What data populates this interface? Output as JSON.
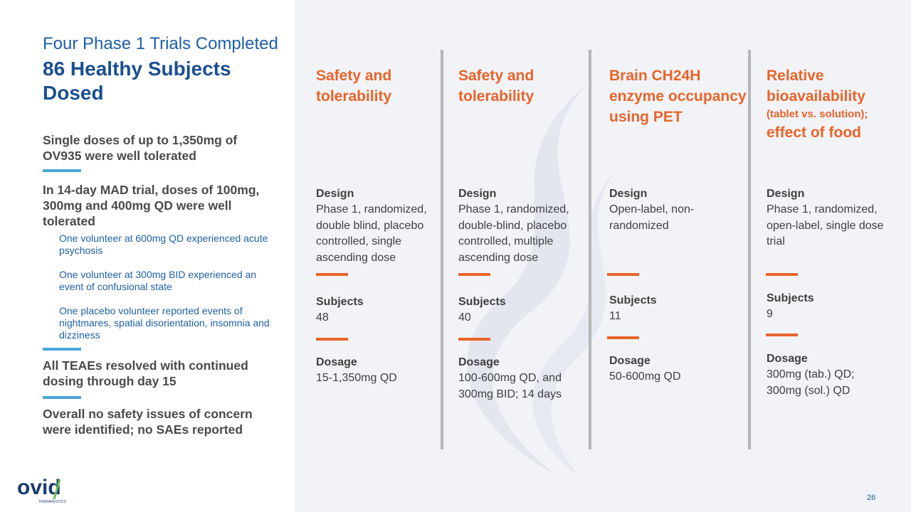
{
  "header": {
    "subtitle": "Four Phase 1 Trials Completed",
    "title": "86 Healthy Subjects Dosed"
  },
  "left_points": [
    {
      "text": "Single doses of up to 1,350mg of OV935 were well tolerated"
    },
    {
      "text": "In 14-day MAD trial, doses of 100mg, 300mg and 400mg QD were well tolerated"
    },
    {
      "text": "All TEAEs resolved with continued dosing through day 15"
    },
    {
      "text": "Overall no safety issues of concern were identified; no SAEs reported"
    }
  ],
  "sub_points": [
    "One volunteer at 600mg QD experienced acute psychosis",
    "One volunteer at 300mg BID experienced an event of confusional state",
    "One placebo volunteer reported events of nightmares, spatial disorientation, insomnia and dizziness"
  ],
  "columns": [
    {
      "heading": "Safety and tolerability",
      "heading_extra": "",
      "heading_tail": "",
      "design_label": "Design",
      "design": "Phase 1, randomized, double blind, placebo controlled, single ascending dose",
      "subjects_label": "Subjects",
      "subjects": "48",
      "dosage_label": "Dosage",
      "dosage": "15-1,350mg QD"
    },
    {
      "heading": "Safety and tolerability",
      "heading_extra": "",
      "heading_tail": "",
      "design_label": "Design",
      "design": "Phase 1, randomized, double-blind, placebo controlled, multiple ascending dose",
      "subjects_label": "Subjects",
      "subjects": "40",
      "dosage_label": "Dosage",
      "dosage": "100-600mg QD, and 300mg BID; 14 days"
    },
    {
      "heading": "Brain CH24H enzyme occupancy using PET",
      "heading_extra": "",
      "heading_tail": "",
      "design_label": "Design",
      "design": "Open-label, non-randomized",
      "subjects_label": "Subjects",
      "subjects": "11",
      "dosage_label": "Dosage",
      "dosage": "50-600mg QD"
    },
    {
      "heading": "Relative bioavailability",
      "heading_extra": "(tablet vs. solution);",
      "heading_tail": "effect of food",
      "design_label": "Design",
      "design": "Phase 1, randomized, open-label, single dose trial",
      "subjects_label": "Subjects",
      "subjects": "9",
      "dosage_label": "Dosage",
      "dosage": "300mg (tab.) QD; 300mg (sol.) QD"
    }
  ],
  "footer": {
    "logo_text": "ovid",
    "logo_sub": "THERAPEUTICS",
    "page_number": "26"
  },
  "colors": {
    "orange": "#e8642a",
    "blue_title": "#1a4f91",
    "blue_bar": "#4ba3d9",
    "panel_bg": "#f2f3f7"
  }
}
